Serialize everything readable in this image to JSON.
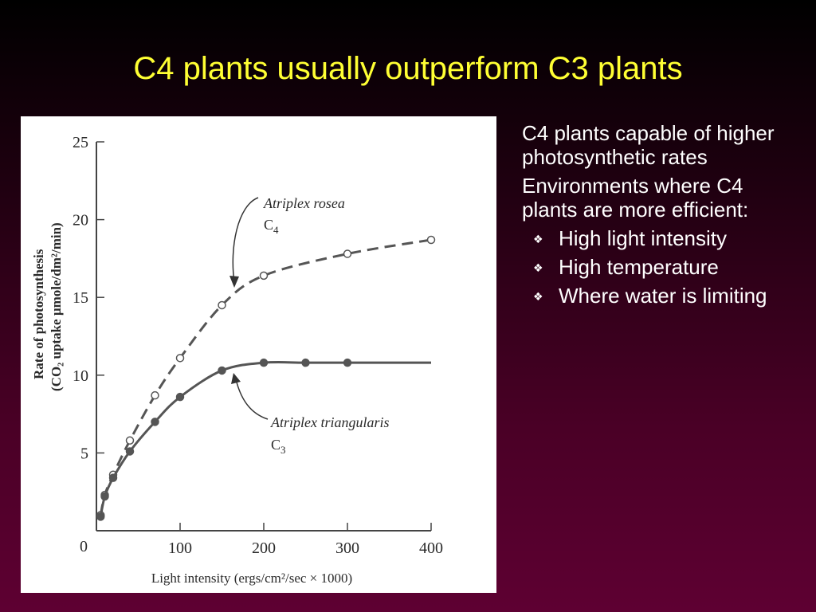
{
  "slide": {
    "title": "C4 plants usually outperform C3 plants"
  },
  "bullets": {
    "points": [
      "C4 plants capable of higher photosynthetic rates",
      "Environments where C4 plants are more efficient:"
    ],
    "sub_points": [
      "High light intensity",
      "High temperature",
      "Where water is limiting"
    ],
    "sub_marker": "❖"
  },
  "colors": {
    "title": "#ffff33",
    "text": "#ffffff",
    "curve": "#555555"
  },
  "chart_data": {
    "type": "line",
    "ylabel_line1": "Rate of photosynthesis",
    "ylabel_line2": "(CO₂ uptake µmole/dm²/min)",
    "xlabel": "Light intensity (ergs/cm²/sec × 1000)",
    "xlim": [
      0,
      400
    ],
    "ylim": [
      0,
      25
    ],
    "x_ticks": [
      "100",
      "200",
      "300",
      "400"
    ],
    "y_ticks": [
      "5",
      "10",
      "15",
      "20",
      "25"
    ],
    "origin_label": "0",
    "grid": false,
    "series": [
      {
        "name_line1": "Atriplex rosea",
        "name_line2": "C",
        "name_sub": "4",
        "style": "dashed",
        "marker": "open-circle",
        "x": [
          5,
          10,
          20,
          40,
          70,
          100,
          150,
          200,
          300,
          400
        ],
        "y": [
          1,
          2.3,
          3.6,
          5.8,
          8.7,
          11.1,
          14.5,
          16.4,
          17.8,
          18.7
        ]
      },
      {
        "name_line1": "Atriplex triangularis",
        "name_line2": "C",
        "name_sub": "3",
        "style": "solid",
        "marker": "filled-circle",
        "x": [
          5,
          10,
          20,
          40,
          70,
          100,
          150,
          200,
          250,
          300
        ],
        "y": [
          0.9,
          2.2,
          3.4,
          5.1,
          7.0,
          8.6,
          10.3,
          10.8,
          10.8,
          10.8
        ]
      }
    ]
  }
}
